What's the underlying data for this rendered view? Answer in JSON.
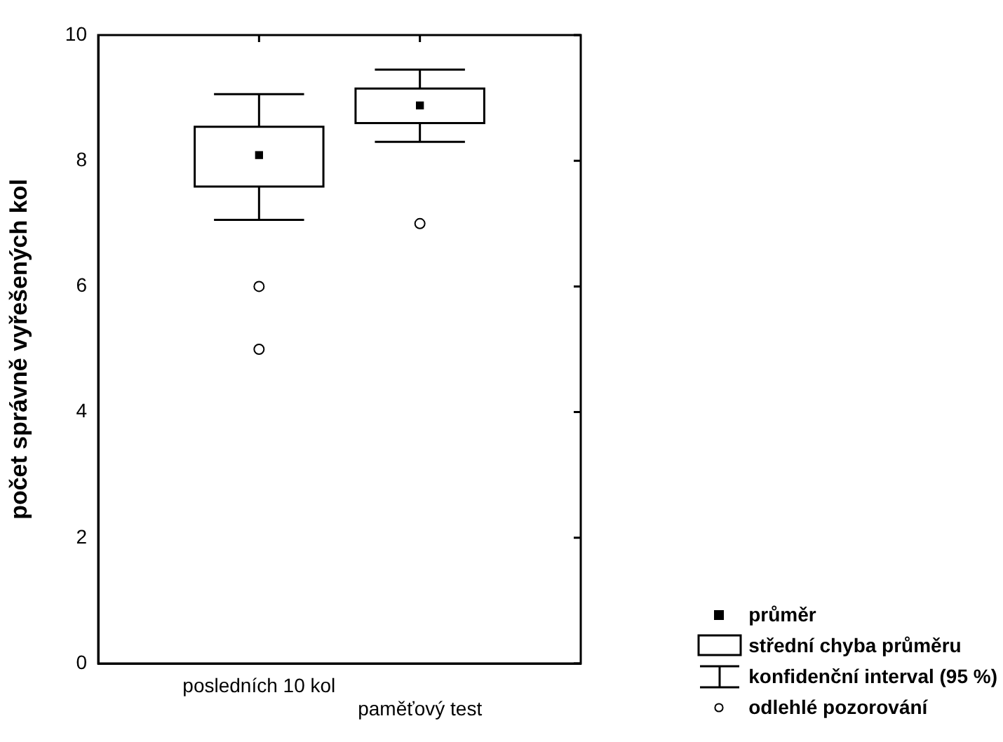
{
  "chart_data": {
    "type": "box",
    "ylabel": "počet správně vyřešených kol",
    "categories": [
      "posledních 10 kol",
      "paměťový test"
    ],
    "boxes": [
      {
        "low": 7.06,
        "q1": 7.59,
        "median": 8.09,
        "q3": 8.54,
        "high": 9.06,
        "outliers": [
          6,
          5
        ]
      },
      {
        "low": 8.3,
        "q1": 8.6,
        "median": 8.88,
        "q3": 9.15,
        "high": 9.45,
        "outliers": [
          7
        ]
      }
    ],
    "color": "#000000",
    "ylim": [
      0,
      10
    ],
    "yticks": [
      0,
      2,
      4,
      6,
      8,
      10
    ],
    "grid": false,
    "annotations": [
      "průměr",
      "střední chyba průměru",
      "konfidenční interval (95 %)",
      "odlehlé pozorování"
    ]
  }
}
